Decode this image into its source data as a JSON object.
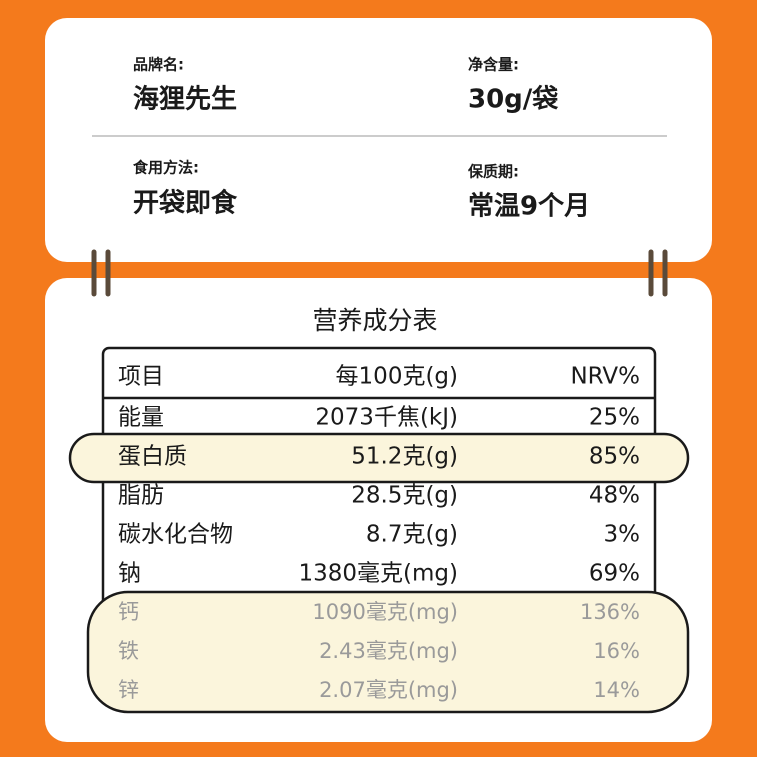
{
  "info": {
    "brand_label": "品牌名:",
    "brand": "海狸先生",
    "weight_label": "净含量:",
    "weight": "30g/袋",
    "usage_label": "食用方法:",
    "usage": "开袋即食",
    "shelf_label": "保质期:",
    "shelf": "常温9个月"
  },
  "table": {
    "title": "营养成分表",
    "header": [
      "项目",
      "每100克(g)",
      "NRV%"
    ],
    "rows": [
      [
        "能量",
        "2073千焦(kJ)",
        "25%"
      ],
      [
        "蛋白质",
        "51.2克(g)",
        "85%"
      ],
      [
        "脂肪",
        "28.5克(g)",
        "48%"
      ],
      [
        "碳水化合物",
        "8.7克(g)",
        "3%"
      ],
      [
        "钠",
        "1380毫克(mg)",
        "69%"
      ],
      [
        "钙",
        "1090毫克(mg)",
        "136%"
      ],
      [
        "铁",
        "2.43毫克(mg)",
        "16%"
      ],
      [
        "锌",
        "2.07毫克(mg)",
        "14%"
      ]
    ]
  }
}
